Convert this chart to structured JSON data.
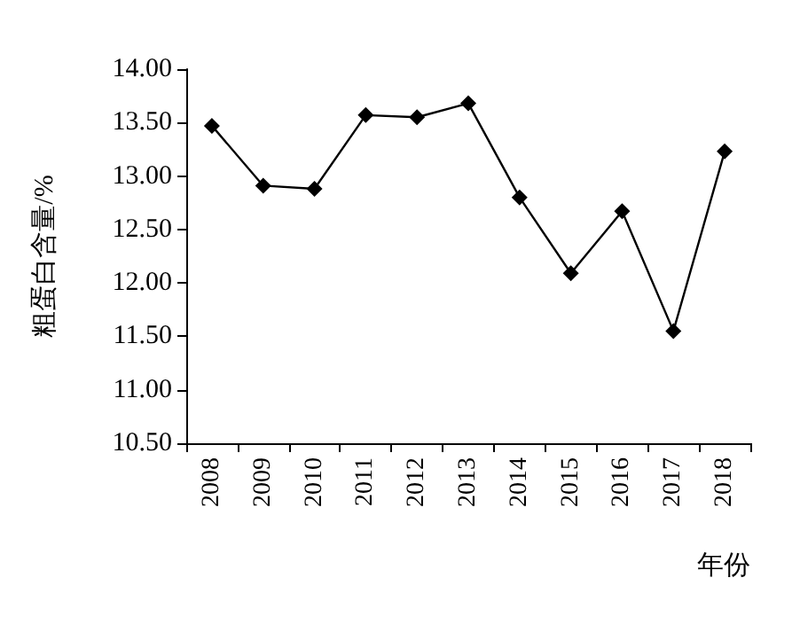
{
  "chart_data": {
    "type": "line",
    "xlabel": "年份",
    "ylabel": "粗蛋白含量/%",
    "categories": [
      "2008",
      "2009",
      "2010",
      "2011",
      "2012",
      "2013",
      "2014",
      "2015",
      "2016",
      "2017",
      "2018"
    ],
    "series": [
      {
        "color": "#000000",
        "values": [
          13.47,
          12.91,
          12.88,
          13.57,
          13.55,
          13.68,
          12.8,
          12.09,
          12.67,
          11.55,
          13.23
        ]
      }
    ],
    "ylim": [
      10.5,
      14
    ],
    "yticks": [
      {
        "value": 10.5,
        "label": "10.50"
      },
      {
        "value": 11,
        "label": "11.00"
      },
      {
        "value": 11.5,
        "label": "11.50"
      },
      {
        "value": 12,
        "label": "12.00"
      },
      {
        "value": 12.5,
        "label": "12.50"
      },
      {
        "value": 13,
        "label": "13.00"
      },
      {
        "value": 13.5,
        "label": "13.50"
      },
      {
        "value": 14,
        "label": "14.00"
      }
    ],
    "grid": false,
    "marker": "diamond",
    "line_style": "solid"
  }
}
